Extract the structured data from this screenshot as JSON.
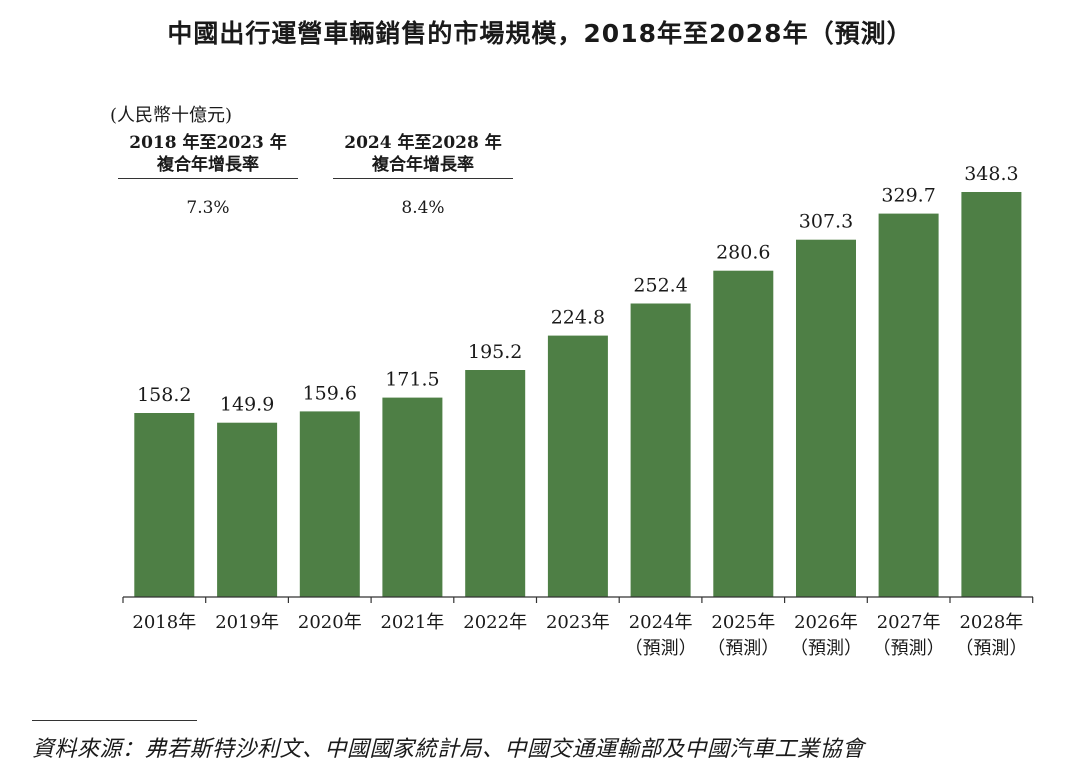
{
  "chart_data": {
    "type": "bar",
    "title": "中國出行運營車輛銷售的市場規模，2018年至2028年（預測）",
    "unit": "(人民幣十億元)",
    "categories": [
      "2018年",
      "2019年",
      "2020年",
      "2021年",
      "2022年",
      "2023年",
      "2024年",
      "2025年",
      "2026年",
      "2027年",
      "2028年"
    ],
    "category_sublabels": [
      "",
      "",
      "",
      "",
      "",
      "",
      "（預測）",
      "（預測）",
      "（預測）",
      "（預測）",
      "（預測）"
    ],
    "values": [
      158.2,
      149.9,
      159.6,
      171.5,
      195.2,
      224.8,
      252.4,
      280.6,
      307.3,
      329.7,
      348.3
    ],
    "value_labels": [
      "158.2",
      "149.9",
      "159.6",
      "171.5",
      "195.2",
      "224.8",
      "252.4",
      "280.6",
      "307.3",
      "329.7",
      "348.3"
    ],
    "bar_color": "#4e7f45",
    "ylim": [
      0,
      350
    ],
    "grid": false,
    "cagr": [
      {
        "period_line1": "2018 年至2023 年",
        "period_line2": "複合年增長率",
        "value": "7.3%"
      },
      {
        "period_line1": "2024 年至2028 年",
        "period_line2": "複合年增長率",
        "value": "8.4%"
      }
    ]
  },
  "source": "資料來源：弗若斯特沙利文、中國國家統計局、中國交通運輸部及中國汽車工業協會"
}
